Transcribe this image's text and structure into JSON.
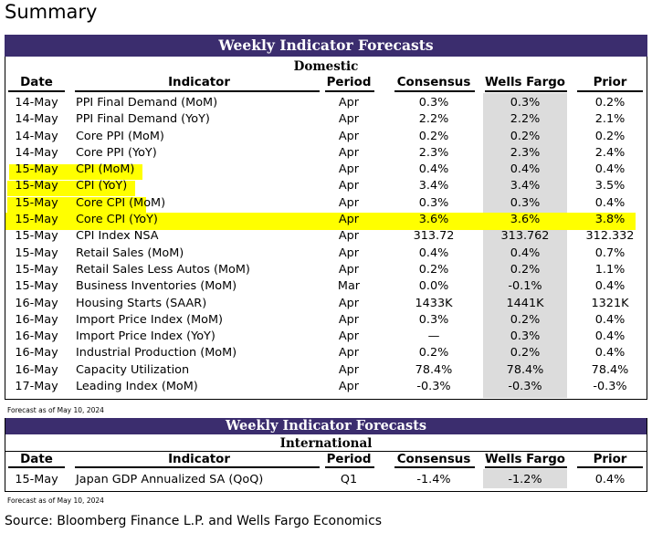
{
  "page_title": "Summary",
  "source": "Source: Bloomberg Finance L.P. and Wells Fargo Economics",
  "columns": {
    "date": "Date",
    "indicator": "Indicator",
    "period": "Period",
    "consensus": "Consensus",
    "wells_fargo": "Wells Fargo",
    "prior": "Prior"
  },
  "colors": {
    "banner": "#3b2d6e",
    "highlight": "#ffff00",
    "wf_shade": "#dcdcdc"
  },
  "domestic": {
    "banner": "Weekly Indicator Forecasts",
    "subtitle": "Domestic",
    "footnote": "Forecast as of May 10, 2024",
    "rows": [
      {
        "date": "14-May",
        "indicator": "PPI Final Demand (MoM)",
        "period": "Apr",
        "consensus": "0.3%",
        "wells_fargo": "0.3%",
        "prior": "0.2%"
      },
      {
        "date": "14-May",
        "indicator": "PPI Final Demand (YoY)",
        "period": "Apr",
        "consensus": "2.2%",
        "wells_fargo": "2.2%",
        "prior": "2.1%"
      },
      {
        "date": "14-May",
        "indicator": "Core PPI (MoM)",
        "period": "Apr",
        "consensus": "0.2%",
        "wells_fargo": "0.2%",
        "prior": "0.2%"
      },
      {
        "date": "14-May",
        "indicator": "Core PPI (YoY)",
        "period": "Apr",
        "consensus": "2.3%",
        "wells_fargo": "2.3%",
        "prior": "2.4%"
      },
      {
        "date": "15-May",
        "indicator": "CPI (MoM)",
        "period": "Apr",
        "consensus": "0.4%",
        "wells_fargo": "0.4%",
        "prior": "0.4%"
      },
      {
        "date": "15-May",
        "indicator": "CPI (YoY)",
        "period": "Apr",
        "consensus": "3.4%",
        "wells_fargo": "3.4%",
        "prior": "3.5%"
      },
      {
        "date": "15-May",
        "indicator": "Core CPI (MoM)",
        "period": "Apr",
        "consensus": "0.3%",
        "wells_fargo": "0.3%",
        "prior": "0.4%"
      },
      {
        "date": "15-May",
        "indicator": "Core CPI (YoY)",
        "period": "Apr",
        "consensus": "3.6%",
        "wells_fargo": "3.6%",
        "prior": "3.8%"
      },
      {
        "date": "15-May",
        "indicator": "CPI Index NSA",
        "period": "Apr",
        "consensus": "313.72",
        "wells_fargo": "313.762",
        "prior": "312.332"
      },
      {
        "date": "15-May",
        "indicator": "Retail Sales (MoM)",
        "period": "Apr",
        "consensus": "0.4%",
        "wells_fargo": "0.4%",
        "prior": "0.7%"
      },
      {
        "date": "15-May",
        "indicator": "Retail Sales Less Autos (MoM)",
        "period": "Apr",
        "consensus": "0.2%",
        "wells_fargo": "0.2%",
        "prior": "1.1%"
      },
      {
        "date": "15-May",
        "indicator": "Business Inventories (MoM)",
        "period": "Mar",
        "consensus": "0.0%",
        "wells_fargo": "-0.1%",
        "prior": "0.4%"
      },
      {
        "date": "16-May",
        "indicator": "Housing Starts (SAAR)",
        "period": "Apr",
        "consensus": "1433K",
        "wells_fargo": "1441K",
        "prior": "1321K"
      },
      {
        "date": "16-May",
        "indicator": "Import Price Index (MoM)",
        "period": "Apr",
        "consensus": "0.3%",
        "wells_fargo": "0.2%",
        "prior": "0.4%"
      },
      {
        "date": "16-May",
        "indicator": "Import Price Index (YoY)",
        "period": "Apr",
        "consensus": "—",
        "wells_fargo": "0.3%",
        "prior": "0.4%"
      },
      {
        "date": "16-May",
        "indicator": "Industrial Production (MoM)",
        "period": "Apr",
        "consensus": "0.2%",
        "wells_fargo": "0.2%",
        "prior": "0.4%"
      },
      {
        "date": "16-May",
        "indicator": "Capacity Utilization",
        "period": "Apr",
        "consensus": "78.4%",
        "wells_fargo": "78.4%",
        "prior": "78.4%"
      },
      {
        "date": "17-May",
        "indicator": "Leading Index (MoM)",
        "period": "Apr",
        "consensus": "-0.3%",
        "wells_fargo": "-0.3%",
        "prior": "-0.3%"
      }
    ]
  },
  "international": {
    "banner": "Weekly Indicator Forecasts",
    "subtitle": "International",
    "footnote": "Forecast as of May 10, 2024",
    "rows": [
      {
        "date": "15-May",
        "indicator": "Japan GDP Annualized SA (QoQ)",
        "period": "Q1",
        "consensus": "-1.4%",
        "wells_fargo": "-1.2%",
        "prior": "0.4%"
      }
    ]
  }
}
